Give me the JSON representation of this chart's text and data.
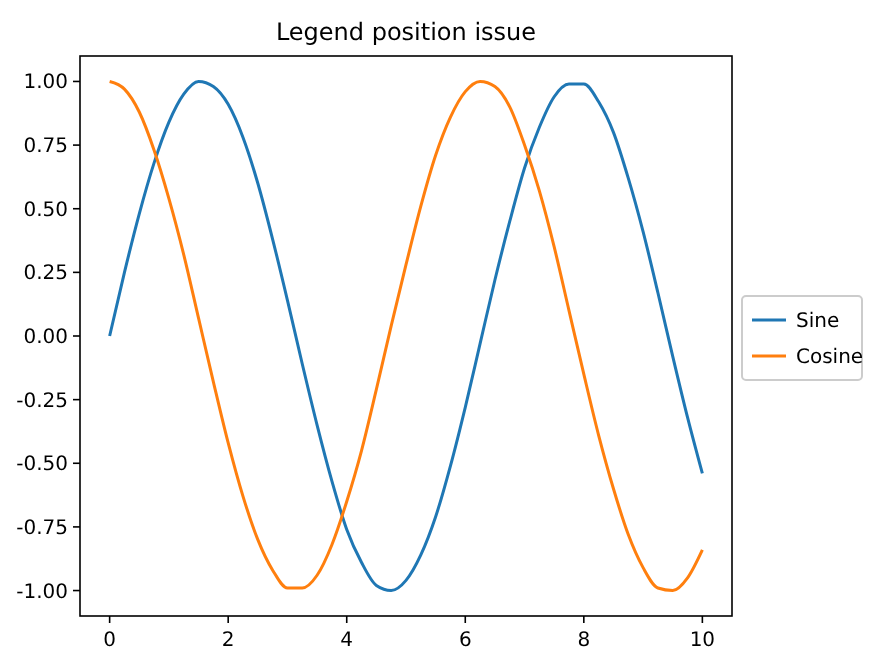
{
  "chart_data": {
    "type": "line",
    "title": "Legend position issue",
    "x": [
      0,
      0.25,
      0.5,
      0.75,
      1,
      1.25,
      1.5,
      1.75,
      2,
      2.25,
      2.5,
      2.75,
      3,
      3.25,
      3.5,
      3.75,
      4,
      4.25,
      4.5,
      4.75,
      5,
      5.25,
      5.5,
      5.75,
      6,
      6.25,
      6.5,
      6.75,
      7,
      7.25,
      7.5,
      7.75,
      8,
      8.25,
      8.5,
      8.75,
      9,
      9.25,
      9.5,
      9.75,
      10
    ],
    "series": [
      {
        "name": "Sine",
        "color": "#1f77b4",
        "values": [
          0,
          0.25,
          0.48,
          0.68,
          0.84,
          0.95,
          1.0,
          0.98,
          0.91,
          0.78,
          0.6,
          0.38,
          0.14,
          -0.11,
          -0.35,
          -0.57,
          -0.76,
          -0.89,
          -0.98,
          -1.0,
          -0.96,
          -0.86,
          -0.71,
          -0.51,
          -0.28,
          -0.03,
          0.22,
          0.45,
          0.66,
          0.82,
          0.94,
          0.99,
          0.99,
          0.92,
          0.8,
          0.62,
          0.41,
          0.17,
          -0.08,
          -0.32,
          -0.54
        ]
      },
      {
        "name": "Cosine",
        "color": "#ff7f0e",
        "values": [
          1.0,
          0.97,
          0.88,
          0.73,
          0.54,
          0.32,
          0.07,
          -0.18,
          -0.42,
          -0.63,
          -0.8,
          -0.92,
          -0.99,
          -0.99,
          -0.94,
          -0.82,
          -0.65,
          -0.45,
          -0.21,
          0.04,
          0.28,
          0.51,
          0.71,
          0.86,
          0.96,
          1.0,
          0.98,
          0.9,
          0.75,
          0.57,
          0.35,
          0.1,
          -0.15,
          -0.39,
          -0.6,
          -0.78,
          -0.91,
          -0.99,
          -1.0,
          -0.95,
          -0.84
        ]
      }
    ],
    "xlim": [
      -0.5,
      10.5
    ],
    "xticks": [
      0,
      2,
      4,
      6,
      8,
      10
    ],
    "ylim": [
      -1.1,
      1.1
    ],
    "yticks": [
      {
        "value": -1,
        "label": "-1.00"
      },
      {
        "value": -0.75,
        "label": "-0.75"
      },
      {
        "value": -0.5,
        "label": "-0.50"
      },
      {
        "value": -0.25,
        "label": "-0.25"
      },
      {
        "value": 0,
        "label": "0.00"
      },
      {
        "value": 0.25,
        "label": "0.25"
      },
      {
        "value": 0.5,
        "label": "0.50"
      },
      {
        "value": 0.75,
        "label": "0.75"
      },
      {
        "value": 1,
        "label": "1.00"
      }
    ],
    "grid": false,
    "legend": "right",
    "marker": "none",
    "line_style": "solid"
  }
}
